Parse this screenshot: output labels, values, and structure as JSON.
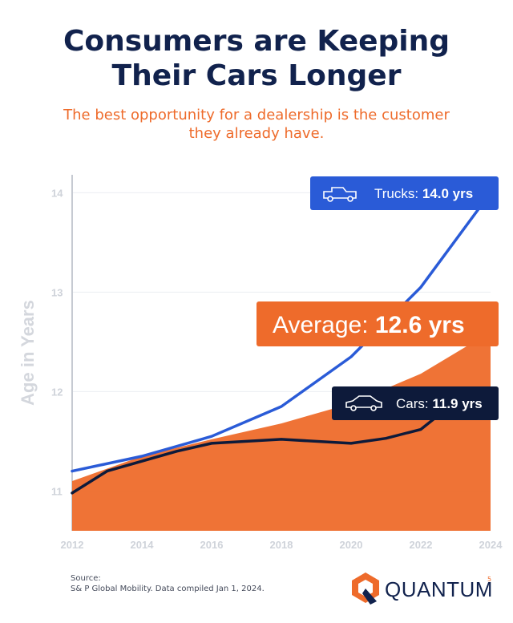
{
  "header": {
    "title_line1": "Consumers are Keeping",
    "title_line2": "Their Cars Longer",
    "subtitle_line1": "The best opportunity for a dealership is the customer",
    "subtitle_line2": "they already have."
  },
  "chart_data": {
    "type": "line",
    "ylabel": "Age in Years",
    "xlabel": "",
    "x_ticks": [
      "2012",
      "2014",
      "2016",
      "2018",
      "2020",
      "2022",
      "2024"
    ],
    "y_ticks": [
      "11",
      "12",
      "13",
      "14"
    ],
    "xlim": [
      2012,
      2024
    ],
    "ylim": [
      10.6,
      14.1
    ],
    "series": [
      {
        "name": "Trucks",
        "style": "line",
        "color": "#2a5bd7",
        "x": [
          2012,
          2014,
          2016,
          2018,
          2020,
          2022,
          2024
        ],
        "values": [
          11.2,
          11.35,
          11.55,
          11.85,
          12.35,
          13.05,
          14.0
        ]
      },
      {
        "name": "Cars",
        "style": "line",
        "color": "#0d1a3a",
        "x": [
          2012,
          2013,
          2014,
          2015,
          2016,
          2018,
          2020,
          2021,
          2022,
          2023,
          2024
        ],
        "values": [
          10.98,
          11.2,
          11.3,
          11.4,
          11.48,
          11.52,
          11.48,
          11.53,
          11.62,
          11.9,
          11.9
        ]
      },
      {
        "name": "Average",
        "style": "area",
        "color": "#ee6b2b",
        "x": [
          2012,
          2014,
          2016,
          2018,
          2020,
          2022,
          2024
        ],
        "values": [
          11.1,
          11.35,
          11.52,
          11.68,
          11.88,
          12.18,
          12.6
        ]
      }
    ],
    "callouts": [
      {
        "name": "Trucks",
        "label": "Trucks:",
        "value": "14.0 yrs",
        "bg": "#2a5bd7",
        "icon": "truck-icon"
      },
      {
        "name": "Average",
        "label": "Average:",
        "value": "12.6 yrs",
        "bg": "#ee6b2b",
        "icon": ""
      },
      {
        "name": "Cars",
        "label": "Cars:",
        "value": "11.9 yrs",
        "bg": "#0d1a3a",
        "icon": "car-icon"
      }
    ],
    "grid": true
  },
  "footer": {
    "source_label": "Source:",
    "source_text": "S& P Global Mobility. Data compiled Jan 1, 2024.",
    "brand_name": "QUANTUM",
    "brand_superscript": "5"
  },
  "colors": {
    "navy": "#11224d",
    "orange": "#ee6b2b",
    "blue": "#2a5bd7",
    "dark": "#0d1a3a",
    "axis_text": "#cfd3da"
  }
}
